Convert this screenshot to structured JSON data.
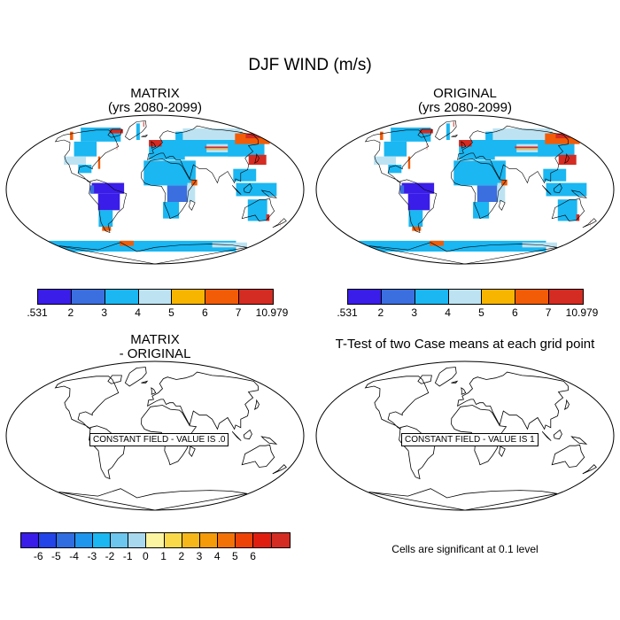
{
  "title": "DJF WIND (m/s)",
  "panels": {
    "top_left": {
      "title_line1": "MATRIX",
      "title_line2": "(yrs 2080-2099)"
    },
    "top_right": {
      "title_line1": "ORIGINAL",
      "title_line2": "(yrs 2080-2099)"
    },
    "bottom_left": {
      "title_line1": "MATRIX",
      "title_line2": "- ORIGINAL",
      "message": "CONSTANT FIELD - VALUE IS .0"
    },
    "bottom_right": {
      "title_line1": "T-Test of two Case means at each grid point",
      "message": "CONSTANT FIELD - VALUE IS 1"
    }
  },
  "colorbar_top": {
    "colors": [
      "#3a1de8",
      "#3b6fe0",
      "#1ab7f2",
      "#bde3f2",
      "#f7b500",
      "#f25c07",
      "#d42b22"
    ],
    "labels": [
      ".531",
      "2",
      "3",
      "4",
      "5",
      "6",
      "7",
      "10.979"
    ]
  },
  "colorbar_bottom": {
    "colors": [
      "#3a1de8",
      "#2244e8",
      "#2f6de0",
      "#1e96ee",
      "#1ab7f2",
      "#6cc6ee",
      "#a8d8ee",
      "#fbf4a0",
      "#f9d94a",
      "#f6b71a",
      "#f59a08",
      "#f27208",
      "#ee4306",
      "#e01e10",
      "#d42b22"
    ],
    "labels": [
      "-6",
      "-5",
      "-4",
      "-3",
      "-2",
      "-1",
      "0",
      "1",
      "2",
      "3",
      "4",
      "5",
      "6"
    ]
  },
  "note": "Cells are significant at 0.1 level"
}
